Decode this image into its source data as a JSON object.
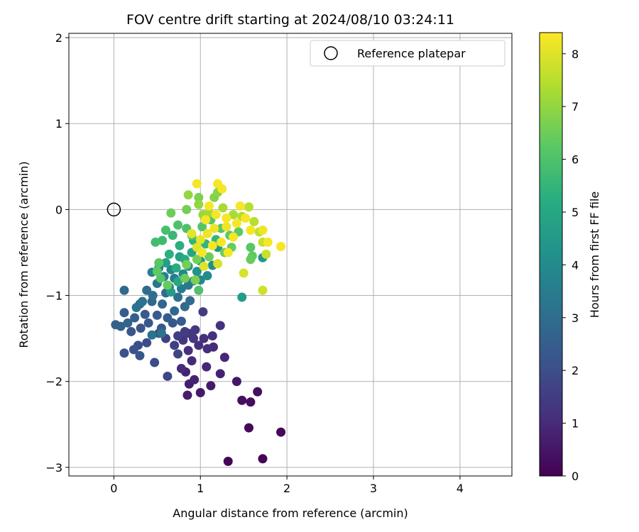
{
  "chart_data": {
    "type": "scatter",
    "title": "FOV centre drift starting at 2024/08/10 03:24:11",
    "xlabel": "Angular distance from reference (arcmin)",
    "ylabel": "Rotation from reference (arcmin)",
    "xlim": [
      -0.52,
      4.6
    ],
    "ylim": [
      -3.1,
      2.05
    ],
    "xticks": [
      "0",
      "1",
      "2",
      "3",
      "4"
    ],
    "yticks": [
      "2",
      "1",
      "0",
      "−1",
      "−2",
      "−3"
    ],
    "grid": true,
    "legend": {
      "placement": "top-right",
      "entries": [
        "Reference platepar"
      ]
    },
    "reference_point": {
      "x": 0,
      "y": 0
    },
    "colorbar": {
      "label": "Hours from first FF file",
      "min": 0,
      "max": 8.4,
      "ticks": [
        "0",
        "1",
        "2",
        "3",
        "4",
        "5",
        "6",
        "7",
        "8"
      ],
      "colormap": [
        "#440154",
        "#472d7b",
        "#3b528b",
        "#2c728e",
        "#21918c",
        "#28ae80",
        "#5ec962",
        "#addc30",
        "#fde725"
      ]
    },
    "points": [
      [
        1.32,
        -2.93,
        0.1
      ],
      [
        1.72,
        -2.9,
        0.1
      ],
      [
        1.93,
        -2.59,
        0.15
      ],
      [
        1.56,
        -2.54,
        0.2
      ],
      [
        1.48,
        -2.22,
        0.3
      ],
      [
        1.58,
        -2.24,
        0.3
      ],
      [
        1.66,
        -2.12,
        0.3
      ],
      [
        1.42,
        -2.0,
        0.5
      ],
      [
        1.0,
        -2.13,
        0.6
      ],
      [
        0.85,
        -2.16,
        0.7
      ],
      [
        0.87,
        -2.03,
        0.7
      ],
      [
        1.12,
        -2.05,
        0.6
      ],
      [
        1.23,
        -1.91,
        0.8
      ],
      [
        0.83,
        -1.89,
        0.8
      ],
      [
        0.93,
        -1.98,
        0.8
      ],
      [
        1.07,
        -1.83,
        0.9
      ],
      [
        1.28,
        -1.72,
        0.9
      ],
      [
        0.78,
        -1.85,
        1.0
      ],
      [
        0.9,
        -1.76,
        1.0
      ],
      [
        1.15,
        -1.6,
        1.0
      ],
      [
        1.08,
        -1.62,
        1.1
      ],
      [
        0.98,
        -1.58,
        1.1
      ],
      [
        0.86,
        -1.64,
        1.1
      ],
      [
        1.04,
        -1.5,
        1.2
      ],
      [
        1.14,
        -1.47,
        1.2
      ],
      [
        1.23,
        -1.35,
        1.2
      ],
      [
        0.92,
        -1.5,
        1.3
      ],
      [
        0.8,
        -1.52,
        1.3
      ],
      [
        0.86,
        -1.44,
        1.3
      ],
      [
        0.94,
        -1.4,
        1.4
      ],
      [
        1.03,
        -1.19,
        1.5
      ],
      [
        0.74,
        -1.47,
        1.5
      ],
      [
        0.82,
        -1.42,
        1.5
      ],
      [
        0.7,
        -1.58,
        1.6
      ],
      [
        0.6,
        -1.5,
        1.6
      ],
      [
        0.74,
        -1.68,
        1.7
      ],
      [
        0.62,
        -1.94,
        1.8
      ],
      [
        0.47,
        -1.78,
        1.9
      ],
      [
        0.52,
        -1.44,
        1.9
      ],
      [
        0.38,
        -1.55,
        2.0
      ],
      [
        0.28,
        -1.58,
        2.0
      ],
      [
        0.12,
        -1.67,
        2.1
      ],
      [
        0.23,
        -1.63,
        2.1
      ],
      [
        0.3,
        -1.7,
        2.2
      ],
      [
        0.2,
        -1.42,
        2.2
      ],
      [
        0.31,
        -1.38,
        2.2
      ],
      [
        0.4,
        -1.32,
        2.3
      ],
      [
        0.55,
        -1.38,
        2.3
      ],
      [
        0.68,
        -1.32,
        2.3
      ],
      [
        0.78,
        -1.3,
        2.4
      ],
      [
        0.62,
        -1.26,
        2.4
      ],
      [
        0.5,
        -1.23,
        2.4
      ],
      [
        0.36,
        -1.22,
        2.4
      ],
      [
        0.24,
        -1.26,
        2.5
      ],
      [
        0.12,
        -1.2,
        2.5
      ],
      [
        0.02,
        -1.34,
        2.6
      ],
      [
        0.08,
        -1.36,
        2.6
      ],
      [
        0.16,
        -1.32,
        2.7
      ],
      [
        0.3,
        -1.1,
        2.7
      ],
      [
        0.44,
        -1.07,
        2.8
      ],
      [
        0.56,
        -1.1,
        2.8
      ],
      [
        0.7,
        -1.18,
        2.8
      ],
      [
        0.82,
        -1.13,
        2.9
      ],
      [
        0.88,
        -1.06,
        2.9
      ],
      [
        0.12,
        -0.94,
        2.9
      ],
      [
        0.38,
        -0.94,
        3.0
      ],
      [
        0.6,
        -0.97,
        3.0
      ],
      [
        0.74,
        -1.02,
        3.1
      ],
      [
        0.45,
        -1.0,
        3.1
      ],
      [
        0.33,
        -1.07,
        3.2
      ],
      [
        0.26,
        -1.14,
        3.2
      ],
      [
        0.55,
        -1.44,
        3.2
      ],
      [
        0.44,
        -1.46,
        3.2
      ],
      [
        0.64,
        -0.9,
        3.3
      ],
      [
        0.5,
        -0.86,
        3.3
      ],
      [
        0.78,
        -0.92,
        3.4
      ],
      [
        0.86,
        -0.88,
        3.4
      ],
      [
        0.92,
        -0.83,
        3.5
      ],
      [
        0.7,
        -0.8,
        3.5
      ],
      [
        0.58,
        -0.78,
        3.6
      ],
      [
        0.44,
        -0.73,
        3.7
      ],
      [
        0.52,
        -0.68,
        3.8
      ],
      [
        0.66,
        -0.7,
        3.8
      ],
      [
        0.8,
        -0.75,
        3.9
      ],
      [
        1.0,
        -0.82,
        3.9
      ],
      [
        1.08,
        -0.77,
        4.0
      ],
      [
        1.14,
        -0.65,
        4.1
      ],
      [
        0.96,
        -0.72,
        4.2
      ],
      [
        0.86,
        -0.66,
        4.3
      ],
      [
        1.72,
        -0.56,
        4.4
      ],
      [
        1.48,
        -1.02,
        4.6
      ],
      [
        1.0,
        -0.6,
        4.5
      ],
      [
        1.2,
        -0.44,
        4.5
      ],
      [
        0.66,
        -0.96,
        4.6
      ],
      [
        0.6,
        -0.62,
        4.7
      ],
      [
        0.76,
        -0.55,
        4.8
      ],
      [
        0.9,
        -0.5,
        4.9
      ],
      [
        0.74,
        -0.84,
        5.0
      ],
      [
        0.82,
        -0.58,
        5.1
      ],
      [
        0.72,
        -0.68,
        5.2
      ],
      [
        0.64,
        -0.52,
        5.3
      ],
      [
        0.76,
        -0.42,
        5.3
      ],
      [
        0.92,
        -0.36,
        5.4
      ],
      [
        1.06,
        -0.4,
        5.5
      ],
      [
        1.18,
        -0.35,
        5.5
      ],
      [
        0.68,
        -0.3,
        5.6
      ],
      [
        0.56,
        -0.36,
        5.7
      ],
      [
        0.48,
        -0.38,
        5.8
      ],
      [
        0.6,
        -0.24,
        5.9
      ],
      [
        0.74,
        -0.18,
        6.0
      ],
      [
        0.84,
        -0.22,
        6.0
      ],
      [
        0.9,
        -0.3,
        6.1
      ],
      [
        1.02,
        -0.2,
        6.1
      ],
      [
        1.12,
        -0.12,
        6.2
      ],
      [
        1.24,
        -0.22,
        6.2
      ],
      [
        1.34,
        -0.3,
        6.3
      ],
      [
        1.44,
        -0.26,
        6.3
      ],
      [
        1.58,
        -0.44,
        6.2
      ],
      [
        1.6,
        -0.54,
        6.3
      ],
      [
        1.58,
        -0.58,
        6.4
      ],
      [
        1.36,
        -0.44,
        6.4
      ],
      [
        1.28,
        -0.5,
        6.5
      ],
      [
        1.1,
        -0.55,
        6.5
      ],
      [
        0.96,
        -0.58,
        6.6
      ],
      [
        0.84,
        -0.64,
        6.6
      ],
      [
        0.94,
        -0.82,
        6.7
      ],
      [
        0.52,
        -0.62,
        6.2
      ],
      [
        0.5,
        -0.72,
        6.3
      ],
      [
        0.54,
        -0.8,
        6.1
      ],
      [
        0.62,
        -0.88,
        6.4
      ],
      [
        0.82,
        -0.8,
        6.5
      ],
      [
        0.98,
        -0.94,
        6.0
      ],
      [
        0.66,
        -0.04,
        6.5
      ],
      [
        0.84,
        0.0,
        6.6
      ],
      [
        0.98,
        0.14,
        6.7
      ],
      [
        1.16,
        0.14,
        6.8
      ],
      [
        1.2,
        0.2,
        6.9
      ],
      [
        0.98,
        0.06,
        7.0
      ],
      [
        0.86,
        0.17,
        7.0
      ],
      [
        1.03,
        -0.06,
        7.1
      ],
      [
        1.1,
        -0.04,
        7.2
      ],
      [
        1.26,
        0.02,
        7.3
      ],
      [
        1.38,
        -0.06,
        7.3
      ],
      [
        1.48,
        -0.08,
        7.4
      ],
      [
        1.56,
        0.03,
        7.5
      ],
      [
        1.62,
        -0.14,
        7.5
      ],
      [
        1.68,
        -0.26,
        7.6
      ],
      [
        1.72,
        -0.38,
        7.7
      ],
      [
        1.76,
        -0.52,
        7.7
      ],
      [
        1.72,
        -0.94,
        7.8
      ],
      [
        1.5,
        -0.74,
        7.9
      ],
      [
        1.2,
        -0.63,
        7.9
      ],
      [
        1.04,
        -0.66,
        8.0
      ],
      [
        0.96,
        -0.44,
        8.0
      ],
      [
        0.9,
        -0.28,
        8.1
      ],
      [
        1.0,
        -0.35,
        8.1
      ],
      [
        1.08,
        -0.28,
        8.2
      ],
      [
        1.16,
        -0.22,
        8.2
      ],
      [
        1.3,
        -0.2,
        8.2
      ],
      [
        1.42,
        -0.16,
        8.3
      ],
      [
        1.52,
        -0.1,
        8.3
      ],
      [
        1.46,
        0.04,
        8.3
      ],
      [
        1.58,
        -0.24,
        8.3
      ],
      [
        1.78,
        -0.38,
        8.3
      ],
      [
        1.93,
        -0.43,
        8.3
      ],
      [
        1.72,
        -0.24,
        8.2
      ],
      [
        1.32,
        -0.5,
        8.3
      ],
      [
        1.02,
        -0.5,
        8.3
      ],
      [
        1.1,
        0.04,
        8.3
      ],
      [
        1.2,
        0.3,
        8.3
      ],
      [
        1.25,
        0.24,
        8.3
      ],
      [
        0.96,
        0.3,
        8.3
      ],
      [
        1.06,
        -0.12,
        8.3
      ],
      [
        1.18,
        -0.06,
        8.3
      ],
      [
        1.3,
        -0.1,
        8.3
      ],
      [
        1.38,
        -0.32,
        8.3
      ],
      [
        1.24,
        -0.38,
        8.3
      ],
      [
        1.14,
        -0.42,
        8.3
      ]
    ]
  }
}
